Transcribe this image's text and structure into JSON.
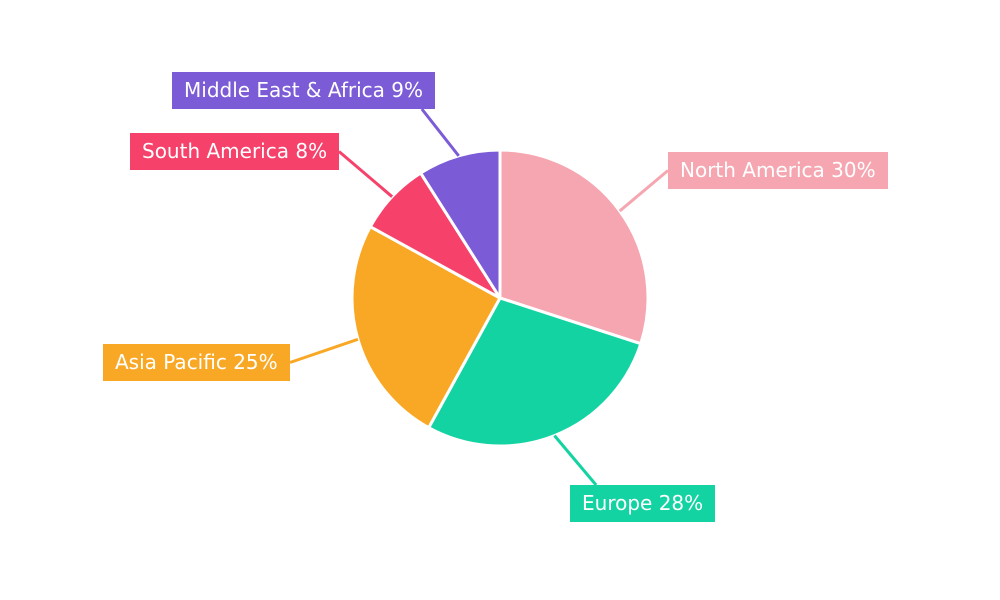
{
  "chart_data": {
    "type": "pie",
    "title": "",
    "start_angle_deg": 0,
    "start_position": "12-oclock",
    "direction": "clockwise",
    "legend": "none",
    "background": "#ffffff",
    "label_text_color": "#ffffff",
    "slice_border_color": "#ffffff",
    "unit": "%",
    "categories": [
      "North America",
      "Europe",
      "Asia Pacific",
      "South America",
      "Middle East & Africa"
    ],
    "values": [
      30,
      28,
      25,
      8,
      9
    ],
    "slices": [
      {
        "label": "North America",
        "value": 30,
        "text": "North America 30%",
        "color": "#f5a6b0"
      },
      {
        "label": "Europe",
        "value": 28,
        "text": "Europe 28%",
        "color": "#14d3a2"
      },
      {
        "label": "Asia Pacific",
        "value": 25,
        "text": "Asia Pacific 25%",
        "color": "#f9a825"
      },
      {
        "label": "South America",
        "value": 8,
        "text": "South America 8%",
        "color": "#f6426b"
      },
      {
        "label": "Middle East & Africa",
        "value": 9,
        "text": "Middle East & Africa 9%",
        "color": "#7b5cd6"
      }
    ]
  }
}
